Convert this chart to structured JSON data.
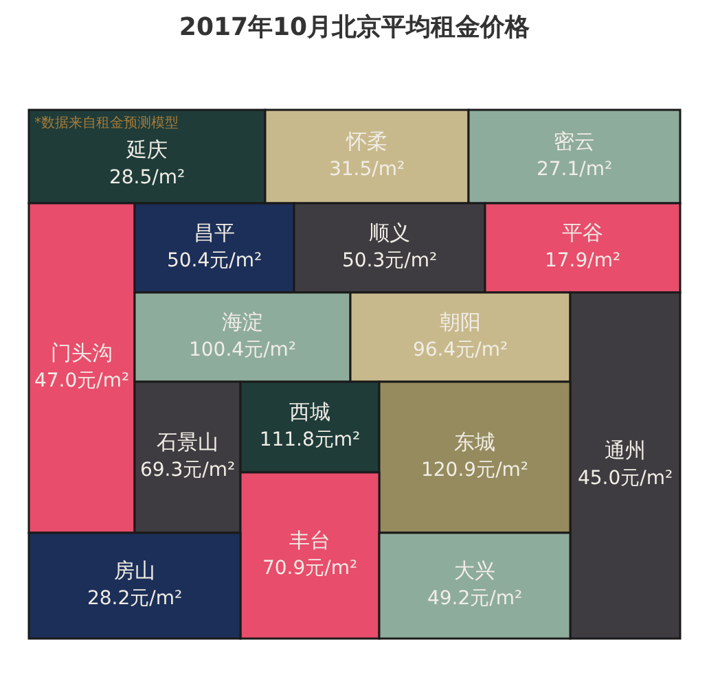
{
  "chart_data": {
    "type": "other",
    "title": "2017年10月北京平均租金价格",
    "categories": [
      "延庆",
      "怀柔",
      "密云",
      "门头沟",
      "昌平",
      "顺义",
      "平谷",
      "海淀",
      "朝阳",
      "通州",
      "石景山",
      "西城",
      "东城",
      "丰台",
      "房山",
      "大兴"
    ],
    "values": [
      28.5,
      31.5,
      27.1,
      47.0,
      50.4,
      50.3,
      17.9,
      100.4,
      96.4,
      45.0,
      69.3,
      111.8,
      120.9,
      70.9,
      28.2,
      49.2
    ],
    "value_labels": [
      "28.5/m²",
      "31.5/m²",
      "27.1/m²",
      "47.0元/m²",
      "50.4元/m²",
      "50.3元/m²",
      "17.9/m²",
      "100.4元/m²",
      "96.4元/m²",
      "45.0元/m²",
      "69.3元/m²",
      "111.8元m²",
      "120.9元/m²",
      "70.9元/m²",
      "28.2元/m²",
      "49.2元/m²"
    ],
    "colors": [
      "#1f3c39",
      "#c8b98c",
      "#8eac9c",
      "#e84d6c",
      "#1c2f58",
      "#3e3c40",
      "#e84d6c",
      "#8eac9c",
      "#c8b98c",
      "#3e3c40",
      "#3e3c40",
      "#1f3c39",
      "#958b5e",
      "#e84d6c",
      "#1c2f58",
      "#8eac9c"
    ],
    "annotations": [
      "*数据来自租金预测模型"
    ]
  }
}
